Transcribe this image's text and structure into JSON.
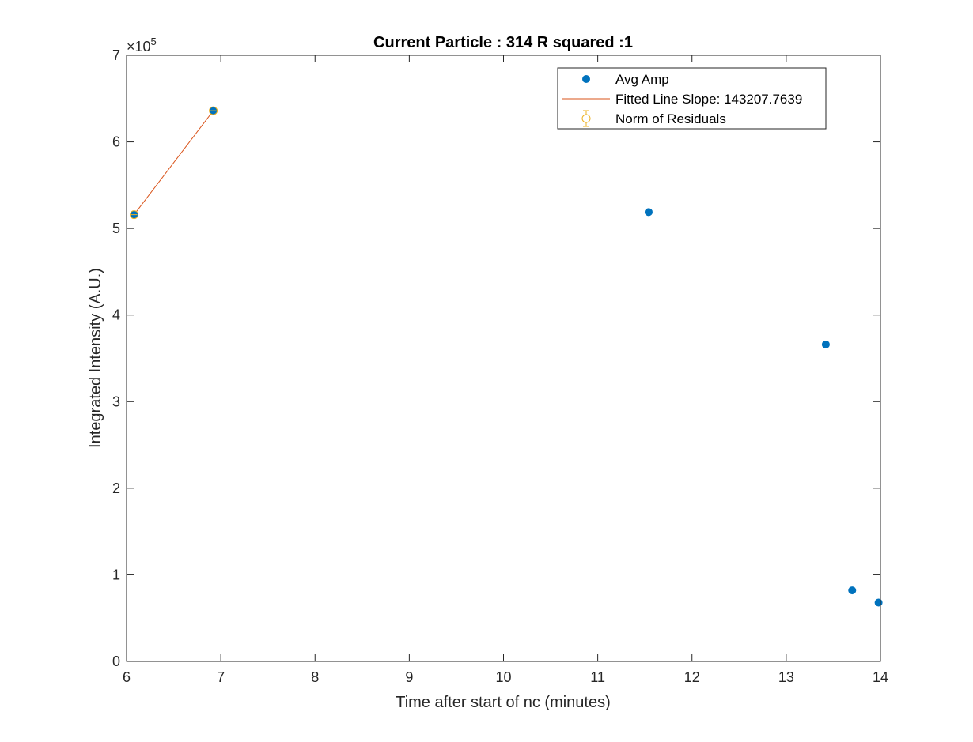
{
  "chart_data": {
    "type": "scatter",
    "title": "Current Particle : 314   R squared :1",
    "xlabel": "Time after start of nc (minutes)",
    "ylabel": "Integrated Intensity (A.U.)",
    "xlim": [
      6,
      14
    ],
    "ylim": [
      0,
      700000
    ],
    "xticks": [
      6,
      7,
      8,
      9,
      10,
      11,
      12,
      13,
      14
    ],
    "xtick_labels": [
      "6",
      "7",
      "8",
      "9",
      "10",
      "11",
      "12",
      "13",
      "14"
    ],
    "yticks": [
      0,
      100000,
      200000,
      300000,
      400000,
      500000,
      600000,
      700000
    ],
    "ytick_labels": [
      "0",
      "1",
      "2",
      "3",
      "4",
      "5",
      "6",
      "7"
    ],
    "y_exponent_label": "×10",
    "y_exponent_power": "5",
    "grid": false,
    "legend_position": "top-right",
    "series": [
      {
        "name": "Avg Amp",
        "kind": "scatter",
        "color": "#0072BD",
        "x": [
          6.08,
          6.92,
          11.54,
          13.42,
          13.7,
          13.98
        ],
        "y": [
          516000,
          636000,
          519000,
          366000,
          82000,
          68000
        ]
      },
      {
        "name": "Fitted Line Slope: 143207.7639",
        "kind": "line",
        "color": "#D95319",
        "x": [
          6.08,
          6.92
        ],
        "y": [
          516000,
          636000
        ]
      },
      {
        "name": "Norm of Residuals",
        "kind": "errorbar",
        "color": "#EDB120",
        "x": [
          6.08,
          6.92
        ],
        "y": [
          516000,
          636000
        ]
      }
    ]
  }
}
